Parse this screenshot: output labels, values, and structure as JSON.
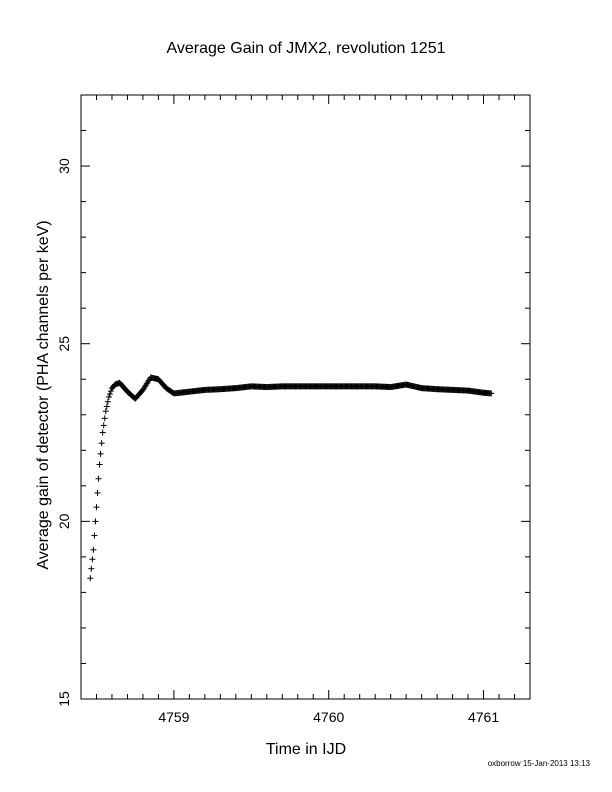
{
  "chart_data": {
    "type": "scatter",
    "title": "Average Gain of JMX2, revolution 1251",
    "xlabel": "Time in IJD",
    "ylabel": "Average gain of detector (PHA channels per keV)",
    "xlim": [
      4758.4,
      4761.3
    ],
    "ylim": [
      15,
      32
    ],
    "x_ticks": [
      "4759",
      "4760",
      "4761"
    ],
    "y_ticks": [
      "15",
      "20",
      "25",
      "30"
    ],
    "marker": "plus",
    "grid": false,
    "series": [
      {
        "x": [
          4758.46,
          4758.48,
          4758.5,
          4758.52,
          4758.54,
          4758.56,
          4758.58,
          4758.6,
          4758.62,
          4758.65,
          4758.7,
          4758.75,
          4758.8,
          4758.85,
          4758.9,
          4758.95,
          4759.0,
          4759.1,
          4759.2,
          4759.3,
          4759.4,
          4759.5,
          4759.6,
          4759.7,
          4759.8,
          4759.9,
          4760.0,
          4760.1,
          4760.2,
          4760.3,
          4760.4,
          4760.5,
          4760.6,
          4760.7,
          4760.8,
          4760.9,
          4761.0,
          4761.05
        ],
        "y": [
          18.4,
          19.2,
          20.4,
          21.6,
          22.5,
          23.1,
          23.5,
          23.75,
          23.85,
          23.9,
          23.65,
          23.45,
          23.7,
          24.05,
          24.0,
          23.75,
          23.6,
          23.65,
          23.7,
          23.72,
          23.75,
          23.8,
          23.78,
          23.8,
          23.8,
          23.8,
          23.8,
          23.8,
          23.8,
          23.8,
          23.78,
          23.85,
          23.75,
          23.72,
          23.7,
          23.68,
          23.62,
          23.6
        ]
      }
    ]
  },
  "footer": "oxborrow 15-Jan-2013 13:13"
}
